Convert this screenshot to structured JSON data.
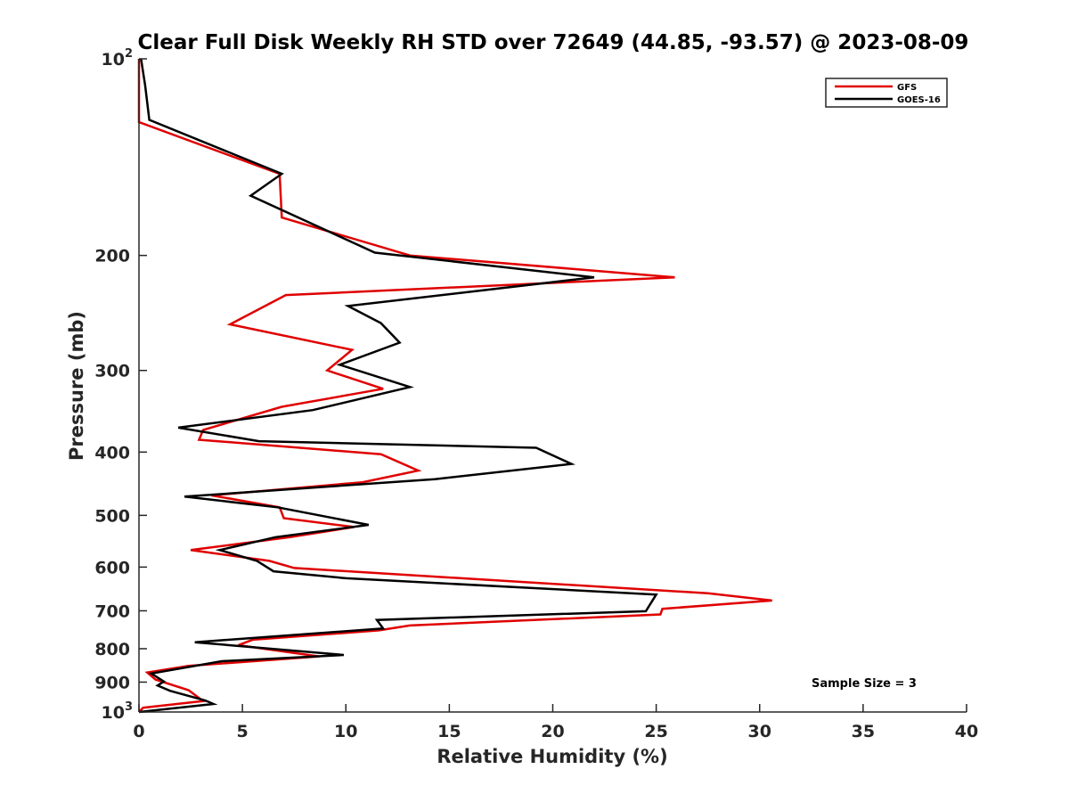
{
  "chart_data": {
    "type": "line",
    "title": "Clear Full Disk Weekly RH STD over 72649 (44.85, -93.57) @ 2023-08-09",
    "xlabel": "Relative Humidity (%)",
    "ylabel": "Pressure (mb)",
    "xlim": [
      0,
      40
    ],
    "ylim": [
      100,
      1000
    ],
    "yscale": "log",
    "y_reversed": true,
    "x_ticks": [
      "0",
      "5",
      "10",
      "15",
      "20",
      "25",
      "30",
      "35",
      "40"
    ],
    "y_ticks": [
      {
        "value": 100,
        "base": "10",
        "exp": "2"
      },
      {
        "value": 200,
        "label": "200"
      },
      {
        "value": 300,
        "label": "300"
      },
      {
        "value": 400,
        "label": "400"
      },
      {
        "value": 500,
        "label": "500"
      },
      {
        "value": 600,
        "label": "600"
      },
      {
        "value": 700,
        "label": "700"
      },
      {
        "value": 800,
        "label": "800"
      },
      {
        "value": 900,
        "label": "900"
      },
      {
        "value": 1000,
        "base": "10",
        "exp": "3"
      }
    ],
    "grid": false,
    "legend_position": "top-right",
    "annotation": "Sample Size = 3",
    "series": [
      {
        "name": "GFS",
        "color": "#e00000",
        "points": [
          [
            0.0,
            100
          ],
          [
            0.0,
            125
          ],
          [
            6.8,
            150
          ],
          [
            6.9,
            175
          ],
          [
            13.1,
            200
          ],
          [
            25.9,
            216
          ],
          [
            7.1,
            230
          ],
          [
            4.4,
            255
          ],
          [
            10.3,
            279
          ],
          [
            9.1,
            300
          ],
          [
            11.8,
            320
          ],
          [
            6.9,
            341
          ],
          [
            3.1,
            370
          ],
          [
            2.9,
            383
          ],
          [
            11.7,
            403
          ],
          [
            13.5,
            427
          ],
          [
            10.8,
            445
          ],
          [
            3.5,
            466
          ],
          [
            6.8,
            486
          ],
          [
            7.0,
            505
          ],
          [
            10.4,
            521
          ],
          [
            7.3,
            540
          ],
          [
            2.5,
            565
          ],
          [
            6.3,
            587
          ],
          [
            7.5,
            602
          ],
          [
            27.5,
            658
          ],
          [
            30.6,
            675
          ],
          [
            25.3,
            695
          ],
          [
            25.2,
            709
          ],
          [
            13.1,
            737
          ],
          [
            11.6,
            750
          ],
          [
            5.5,
            775
          ],
          [
            4.8,
            790
          ],
          [
            8.7,
            822
          ],
          [
            2.4,
            850
          ],
          [
            0.4,
            870
          ],
          [
            0.8,
            892
          ],
          [
            2.4,
            926
          ],
          [
            3.1,
            962
          ],
          [
            0.2,
            985
          ],
          [
            0.0,
            1000
          ]
        ]
      },
      {
        "name": "GOES-16",
        "color": "#000000",
        "points": [
          [
            0.1,
            100
          ],
          [
            0.3,
            110
          ],
          [
            0.5,
            124
          ],
          [
            6.9,
            150
          ],
          [
            5.4,
            162
          ],
          [
            11.4,
            198
          ],
          [
            22.0,
            216
          ],
          [
            10.1,
            239
          ],
          [
            11.7,
            254
          ],
          [
            12.6,
            272
          ],
          [
            9.7,
            294
          ],
          [
            13.1,
            318
          ],
          [
            8.4,
            345
          ],
          [
            1.9,
            367
          ],
          [
            5.8,
            385
          ],
          [
            19.2,
            394
          ],
          [
            20.9,
            417
          ],
          [
            14.3,
            440
          ],
          [
            2.2,
            468
          ],
          [
            6.7,
            486
          ],
          [
            11.1,
            517
          ],
          [
            6.6,
            540
          ],
          [
            3.9,
            565
          ],
          [
            5.7,
            587
          ],
          [
            6.5,
            609
          ],
          [
            10.0,
            624
          ],
          [
            25.0,
            661
          ],
          [
            24.5,
            701
          ],
          [
            11.5,
            723
          ],
          [
            11.8,
            745
          ],
          [
            2.7,
            782
          ],
          [
            9.9,
            818
          ],
          [
            4.0,
            836
          ],
          [
            0.6,
            873
          ],
          [
            1.2,
            898
          ],
          [
            0.9,
            911
          ],
          [
            1.5,
            928
          ],
          [
            3.2,
            960
          ],
          [
            3.6,
            972
          ],
          [
            0.0,
            1000
          ]
        ]
      }
    ]
  }
}
